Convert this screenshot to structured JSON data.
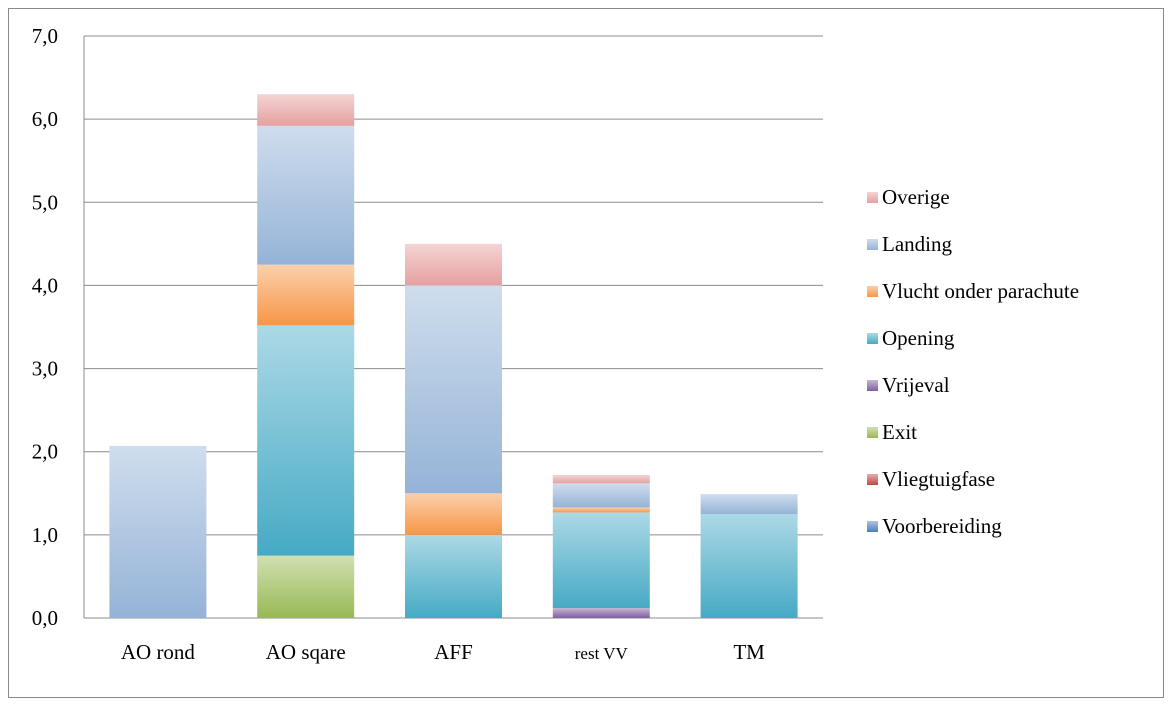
{
  "chart_data": {
    "type": "bar",
    "stacked": true,
    "categories": [
      "AO rond",
      "AO sqare",
      "AFF",
      "rest VV",
      "TM"
    ],
    "y_tick_labels": [
      "0,0",
      "1,0",
      "2,0",
      "3,0",
      "4,0",
      "5,0",
      "6,0",
      "7,0"
    ],
    "ylim": [
      0,
      7
    ],
    "grid": true,
    "legend_position": "right",
    "series": [
      {
        "name": "Voorbereiding",
        "color": "#4a7ebb",
        "values": [
          0,
          0,
          0,
          0,
          0
        ]
      },
      {
        "name": "Vliegtuigfase",
        "color": "#be4b48",
        "values": [
          0,
          0,
          0,
          0,
          0
        ]
      },
      {
        "name": "Exit",
        "color": "#98b954",
        "values": [
          0,
          0.75,
          0,
          0,
          0
        ]
      },
      {
        "name": "Vrijeval",
        "color": "#7d60a0",
        "values": [
          0,
          0,
          0,
          0.12,
          0
        ]
      },
      {
        "name": "Opening",
        "color": "#46aac5",
        "values": [
          0,
          2.77,
          1.0,
          1.15,
          1.25
        ]
      },
      {
        "name": "Vlucht onder parachute",
        "color": "#f79646",
        "values": [
          0,
          0.73,
          0.5,
          0.06,
          0
        ]
      },
      {
        "name": "Landing",
        "color": "#95b3d7",
        "values": [
          2.07,
          1.67,
          2.5,
          0.29,
          0.24
        ]
      },
      {
        "name": "Overige",
        "color": "#e6a0a0",
        "values": [
          0,
          0.38,
          0.5,
          0.1,
          0
        ]
      }
    ]
  }
}
